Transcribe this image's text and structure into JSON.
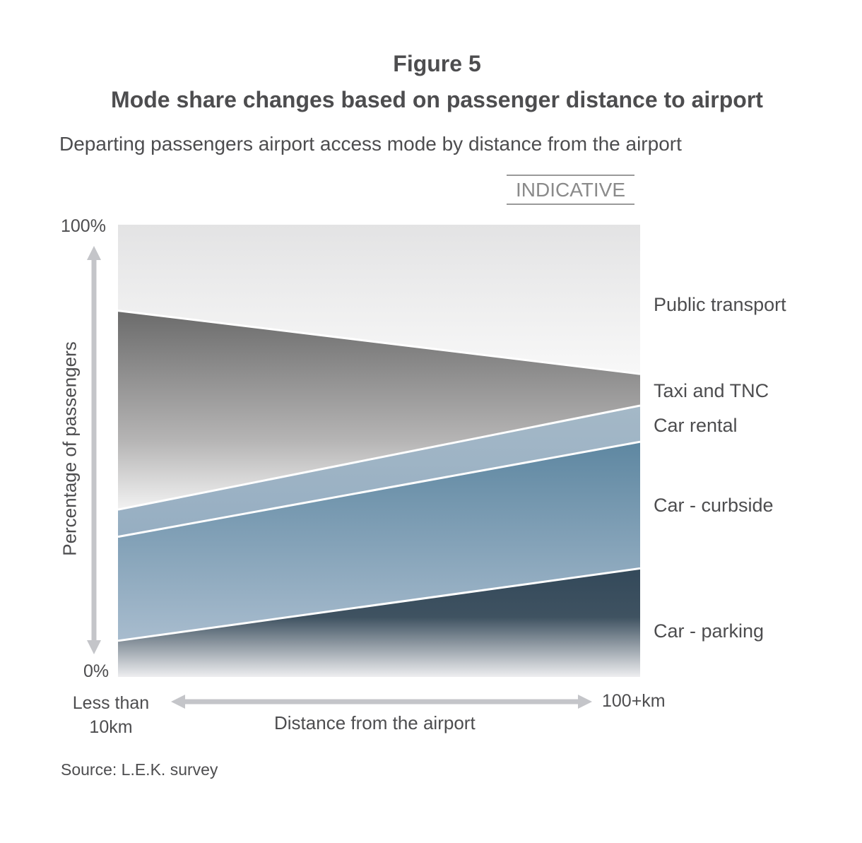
{
  "figure_label": "Figure 5",
  "title": "Mode share changes based on passenger distance to airport",
  "subtitle": "Departing passengers airport access mode by distance from the airport",
  "badge": "INDICATIVE",
  "source": "Source:  L.E.K. survey",
  "colors": {
    "public_transport": "#e6e6e7",
    "taxi_tnc": "#7a7a7a",
    "car_rental": "#9fb6c8",
    "car_curbside": "#6a8ea6",
    "car_parking": "#3a4d5c",
    "axis_arrow": "#c4c5c9"
  },
  "chart_data": {
    "type": "area",
    "stacked": true,
    "x_categories": [
      "Less than 10km",
      "100+km"
    ],
    "xlabel": "Distance from the airport",
    "ylabel": "Percentage of passengers",
    "y_ticks": [
      "0%",
      "100%"
    ],
    "ylim": [
      0,
      100
    ],
    "series": [
      {
        "name": "Car - parking",
        "values": [
          8,
          24
        ]
      },
      {
        "name": "Car - curbside",
        "values": [
          31,
          52
        ]
      },
      {
        "name": "Car rental",
        "values": [
          37,
          60
        ]
      },
      {
        "name": "Taxi and TNC",
        "values": [
          81,
          67
        ]
      },
      {
        "name": "Public transport",
        "values": [
          100,
          100
        ]
      }
    ],
    "series_note": "values are cumulative upper boundaries (%) of each stacked band at each end of the x-axis"
  }
}
